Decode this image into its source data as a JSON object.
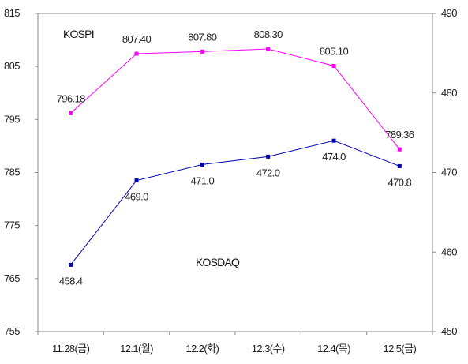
{
  "chart_data": {
    "type": "line",
    "categories": [
      "11.28(금)",
      "12.1(월)",
      "12.2(화)",
      "12.3(수)",
      "12.4(목)",
      "12.5(금)"
    ],
    "left_axis": {
      "ylim": [
        755,
        815
      ],
      "ticks": [
        "755",
        "765",
        "775",
        "785",
        "795",
        "805",
        "815"
      ]
    },
    "right_axis": {
      "ylim": [
        450,
        490
      ],
      "ticks": [
        "450",
        "460",
        "470",
        "480",
        "490"
      ]
    },
    "series": [
      {
        "name": "KOSPI",
        "axis": "left",
        "color": "#ff00ff",
        "values": [
          796.18,
          807.4,
          807.8,
          808.3,
          805.1,
          789.36
        ],
        "labels": [
          "796.18",
          "807.40",
          "807.80",
          "808.30",
          "805.10",
          "789.36"
        ]
      },
      {
        "name": "KOSDAQ",
        "axis": "right",
        "color": "#0000b0",
        "values": [
          458.4,
          469.0,
          471.0,
          472.0,
          474.0,
          470.8
        ],
        "labels": [
          "458.4",
          "469.0",
          "471.0",
          "472.0",
          "474.0",
          "470.8"
        ]
      }
    ],
    "grid": false,
    "legend": "none"
  }
}
